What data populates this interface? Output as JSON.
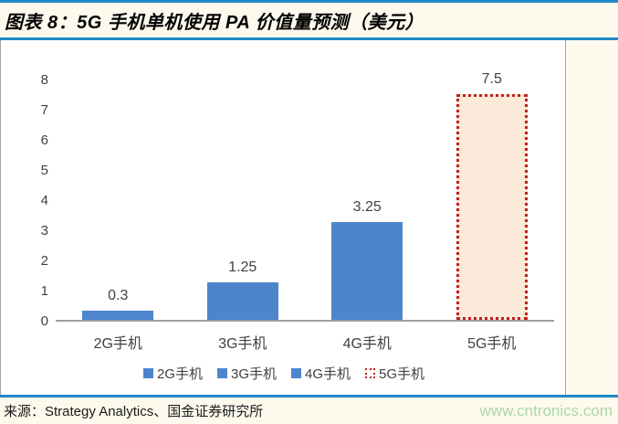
{
  "title": "图表 8：5G 手机单机使用 PA 价值量预测（美元）",
  "footer": {
    "source": "来源：Strategy Analytics、国金证券研究所",
    "watermark": "www.cntronics.com"
  },
  "colors": {
    "accent_rule_blue": "#2089C5",
    "bar_blue": "#4D85CD",
    "forecast_bar_fill": "#FBE9D9",
    "forecast_bar_border": "#C0201C",
    "page_background": "#FDFAED",
    "panel_background": "#FFFFFF",
    "axis_text": "#404040",
    "watermark_green": "#A9D9A5"
  },
  "chart_data": {
    "type": "bar",
    "categories": [
      "2G手机",
      "3G手机",
      "4G手机",
      "5G手机"
    ],
    "values": [
      0.3,
      1.25,
      3.25,
      7.5
    ],
    "value_labels": [
      "0.3",
      "1.25",
      "3.25",
      "7.5"
    ],
    "bar_styles": [
      "solid",
      "solid",
      "solid",
      "dotted-outline"
    ],
    "title": "",
    "xlabel": "",
    "ylabel": "",
    "ylim": [
      0,
      8
    ],
    "yticks": [
      0,
      1,
      2,
      3,
      4,
      5,
      6,
      7,
      8
    ],
    "grid": false,
    "legend_position": "bottom",
    "legend": [
      "2G手机",
      "3G手机",
      "4G手机",
      "5G手机"
    ]
  }
}
